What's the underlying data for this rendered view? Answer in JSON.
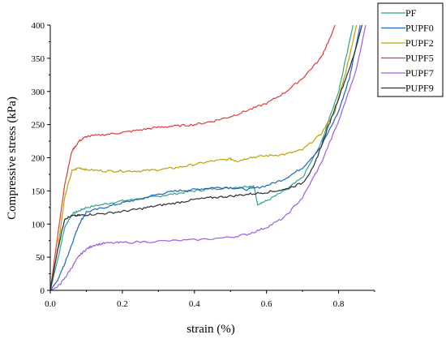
{
  "chart_data": {
    "type": "line",
    "title": "",
    "xlabel": "strain (%)",
    "ylabel": "Compressive stress (kPa)",
    "xlim": [
      0,
      0.9
    ],
    "ylim": [
      0,
      400
    ],
    "xticks": [
      "0.0",
      "0.2",
      "0.4",
      "0.6",
      "0.8"
    ],
    "yticks": [
      "0",
      "50",
      "100",
      "150",
      "200",
      "250",
      "300",
      "350",
      "400"
    ],
    "legend_position": "top-right",
    "grid": false,
    "series": [
      {
        "name": "PF",
        "color": "#2ca58d",
        "points": [
          [
            0,
            0
          ],
          [
            0.02,
            45
          ],
          [
            0.04,
            95
          ],
          [
            0.06,
            115
          ],
          [
            0.08,
            120
          ],
          [
            0.1,
            125
          ],
          [
            0.15,
            130
          ],
          [
            0.2,
            135
          ],
          [
            0.25,
            138
          ],
          [
            0.3,
            142
          ],
          [
            0.35,
            146
          ],
          [
            0.4,
            150
          ],
          [
            0.45,
            153
          ],
          [
            0.5,
            155
          ],
          [
            0.55,
            157
          ],
          [
            0.565,
            157
          ],
          [
            0.575,
            130
          ],
          [
            0.6,
            135
          ],
          [
            0.65,
            150
          ],
          [
            0.7,
            170
          ],
          [
            0.75,
            220
          ],
          [
            0.8,
            300
          ],
          [
            0.84,
            400
          ]
        ]
      },
      {
        "name": "PUPF0",
        "color": "#1f63c6",
        "points": [
          [
            0,
            0
          ],
          [
            0.02,
            15
          ],
          [
            0.04,
            40
          ],
          [
            0.06,
            70
          ],
          [
            0.08,
            100
          ],
          [
            0.1,
            118
          ],
          [
            0.15,
            125
          ],
          [
            0.2,
            132
          ],
          [
            0.25,
            138
          ],
          [
            0.3,
            145
          ],
          [
            0.35,
            150
          ],
          [
            0.4,
            152
          ],
          [
            0.45,
            155
          ],
          [
            0.5,
            155
          ],
          [
            0.55,
            152
          ],
          [
            0.6,
            158
          ],
          [
            0.65,
            168
          ],
          [
            0.7,
            185
          ],
          [
            0.75,
            215
          ],
          [
            0.8,
            270
          ],
          [
            0.83,
            320
          ],
          [
            0.86,
            400
          ]
        ]
      },
      {
        "name": "PUPF2",
        "color": "#c0a000",
        "points": [
          [
            0,
            0
          ],
          [
            0.02,
            60
          ],
          [
            0.04,
            140
          ],
          [
            0.06,
            180
          ],
          [
            0.08,
            185
          ],
          [
            0.1,
            182
          ],
          [
            0.15,
            180
          ],
          [
            0.2,
            180
          ],
          [
            0.25,
            180
          ],
          [
            0.3,
            182
          ],
          [
            0.35,
            185
          ],
          [
            0.4,
            190
          ],
          [
            0.45,
            195
          ],
          [
            0.5,
            198
          ],
          [
            0.52,
            195
          ],
          [
            0.55,
            200
          ],
          [
            0.6,
            203
          ],
          [
            0.65,
            205
          ],
          [
            0.7,
            212
          ],
          [
            0.75,
            235
          ],
          [
            0.79,
            270
          ],
          [
            0.82,
            330
          ],
          [
            0.85,
            400
          ]
        ]
      },
      {
        "name": "PUPF5",
        "color": "#e03a3a",
        "points": [
          [
            0,
            0
          ],
          [
            0.02,
            80
          ],
          [
            0.04,
            160
          ],
          [
            0.06,
            210
          ],
          [
            0.08,
            225
          ],
          [
            0.1,
            232
          ],
          [
            0.15,
            235
          ],
          [
            0.2,
            238
          ],
          [
            0.25,
            242
          ],
          [
            0.3,
            246
          ],
          [
            0.35,
            248
          ],
          [
            0.4,
            250
          ],
          [
            0.45,
            255
          ],
          [
            0.5,
            262
          ],
          [
            0.55,
            272
          ],
          [
            0.6,
            282
          ],
          [
            0.65,
            298
          ],
          [
            0.7,
            320
          ],
          [
            0.75,
            350
          ],
          [
            0.78,
            385
          ],
          [
            0.79,
            400
          ]
        ]
      },
      {
        "name": "PUPF7",
        "color": "#9c5ce6",
        "points": [
          [
            0,
            0
          ],
          [
            0.02,
            5
          ],
          [
            0.04,
            18
          ],
          [
            0.06,
            35
          ],
          [
            0.08,
            52
          ],
          [
            0.1,
            62
          ],
          [
            0.12,
            68
          ],
          [
            0.15,
            71
          ],
          [
            0.2,
            72
          ],
          [
            0.3,
            74
          ],
          [
            0.4,
            76
          ],
          [
            0.5,
            80
          ],
          [
            0.55,
            85
          ],
          [
            0.6,
            95
          ],
          [
            0.65,
            110
          ],
          [
            0.7,
            140
          ],
          [
            0.75,
            190
          ],
          [
            0.8,
            255
          ],
          [
            0.85,
            335
          ],
          [
            0.875,
            400
          ]
        ]
      },
      {
        "name": "PUPF9",
        "color": "#2c2c3a",
        "points": [
          [
            0,
            0
          ],
          [
            0.02,
            60
          ],
          [
            0.04,
            108
          ],
          [
            0.06,
            112
          ],
          [
            0.08,
            113
          ],
          [
            0.1,
            114
          ],
          [
            0.15,
            116
          ],
          [
            0.2,
            119
          ],
          [
            0.25,
            123
          ],
          [
            0.3,
            128
          ],
          [
            0.35,
            132
          ],
          [
            0.4,
            137
          ],
          [
            0.45,
            140
          ],
          [
            0.5,
            142
          ],
          [
            0.55,
            145
          ],
          [
            0.6,
            148
          ],
          [
            0.65,
            152
          ],
          [
            0.7,
            162
          ],
          [
            0.73,
            185
          ],
          [
            0.76,
            230
          ],
          [
            0.8,
            290
          ],
          [
            0.84,
            350
          ],
          [
            0.865,
            400
          ]
        ]
      }
    ]
  }
}
